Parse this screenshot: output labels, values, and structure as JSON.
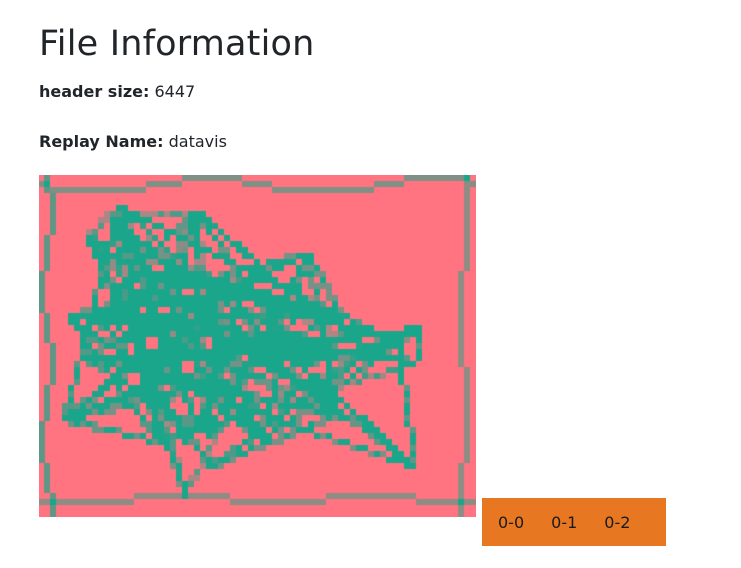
{
  "page": {
    "title": "File Information"
  },
  "info": {
    "header_size_label": "header size:",
    "header_size_value": "6447",
    "replay_name_label": "Replay Name:",
    "replay_name_value": "datavis"
  },
  "heatmap": {
    "background_color": "#ff7480",
    "line_color": "#1aa68a",
    "cols": 73,
    "rows": 57
  },
  "tabs": [
    {
      "label": "0-0"
    },
    {
      "label": "0-1"
    },
    {
      "label": "0-2"
    }
  ],
  "colors": {
    "tab_bar": "#e87722"
  }
}
